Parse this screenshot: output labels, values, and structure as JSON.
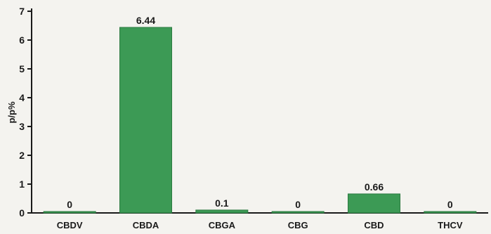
{
  "chart_data": {
    "type": "bar",
    "title": "",
    "xlabel": "",
    "ylabel": "p/p%",
    "ylim": [
      0,
      7
    ],
    "yticks": [
      "0",
      "1",
      "2",
      "3",
      "4",
      "5",
      "6",
      "7"
    ],
    "categories": [
      "CBDV",
      "CBDA",
      "CBGA",
      "CBG",
      "CBD",
      "THCV"
    ],
    "values": [
      0,
      6.44,
      0.1,
      0,
      0.66,
      0
    ],
    "data_labels": [
      "0",
      "6.44",
      "0.1",
      "0",
      "0.66",
      "0"
    ],
    "grid": false,
    "legend": "none",
    "colors": {
      "bar": "#3c9a55",
      "bar_edge": "#2c7a41",
      "axis": "#1a1a1a",
      "background": "#f4f3ef"
    }
  }
}
